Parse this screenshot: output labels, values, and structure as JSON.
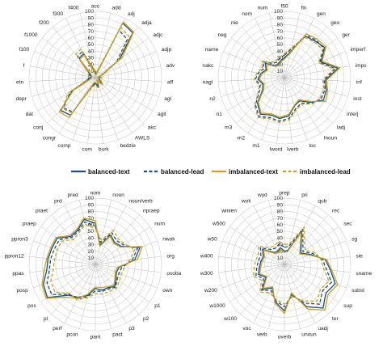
{
  "colors": {
    "balanced": "#1f4e79",
    "imbalanced": "#c9a227",
    "grid": "#cfcfcf",
    "spoke": "#bdbdbd"
  },
  "legend": [
    {
      "label": "balanced-text",
      "color": "#1f4e79",
      "dash": "solid"
    },
    {
      "label": "balanced-lead",
      "color": "#1f4e79",
      "dash": "dashed"
    },
    {
      "label": "imbalanced-text",
      "color": "#c9a227",
      "dash": "solid"
    },
    {
      "label": "imbalanced-lead",
      "color": "#c9a227",
      "dash": "dashed"
    }
  ],
  "chart_data": [
    {
      "type": "radar",
      "rlim": [
        0,
        100
      ],
      "ticks": [
        "10",
        "20",
        "30",
        "40",
        "50",
        "60",
        "70",
        "80",
        "90",
        "100"
      ],
      "categories": [
        "acc",
        "add",
        "adj",
        "adja",
        "adjc",
        "adjp",
        "adv",
        "aff",
        "agl",
        "aglt",
        "akc",
        "AWLS",
        "bedzie",
        "burk",
        "com",
        "comp",
        "congr",
        "conj",
        "dat",
        "depr",
        "etn",
        "f",
        "f100",
        "f1000",
        "f200",
        "f300",
        "f400"
      ],
      "series": [
        {
          "name": "balanced-text",
          "values": [
            6,
            5,
            92,
            88,
            45,
            12,
            4,
            6,
            5,
            6,
            12,
            5,
            12,
            10,
            8,
            12,
            68,
            72,
            40,
            10,
            8,
            6,
            8,
            10,
            38,
            40,
            12
          ]
        },
        {
          "name": "balanced-lead",
          "values": [
            8,
            6,
            80,
            75,
            40,
            10,
            5,
            8,
            6,
            8,
            14,
            6,
            14,
            12,
            10,
            14,
            62,
            66,
            44,
            12,
            10,
            8,
            10,
            12,
            42,
            44,
            14
          ]
        },
        {
          "name": "imbalanced-text",
          "values": [
            5,
            5,
            94,
            90,
            50,
            10,
            4,
            5,
            5,
            5,
            10,
            4,
            10,
            8,
            7,
            10,
            72,
            75,
            38,
            8,
            6,
            5,
            6,
            8,
            36,
            38,
            10
          ]
        },
        {
          "name": "imbalanced-lead",
          "values": [
            10,
            8,
            85,
            80,
            42,
            14,
            8,
            10,
            8,
            10,
            16,
            8,
            16,
            14,
            12,
            16,
            64,
            68,
            48,
            14,
            12,
            10,
            12,
            14,
            46,
            48,
            16
          ]
        }
      ]
    },
    {
      "type": "radar",
      "rlim": [
        0,
        100
      ],
      "ticks": [
        "10",
        "20",
        "30",
        "40",
        "50",
        "60",
        "70",
        "80",
        "90",
        "100"
      ],
      "categories": [
        "f50",
        "fin",
        "gen",
        "geo",
        "ger",
        "imperf",
        "imps",
        "inf",
        "inst",
        "interj",
        "ladj",
        "lnoun",
        "loc",
        "lverb",
        "lword",
        "m1",
        "m2",
        "m3",
        "n1",
        "n2",
        "nagl",
        "nakc",
        "name",
        "neg",
        "nie",
        "nom",
        "num"
      ],
      "series": [
        {
          "name": "balanced-text",
          "values": [
            30,
            40,
            70,
            72,
            76,
            60,
            82,
            62,
            66,
            68,
            54,
            42,
            45,
            58,
            62,
            60,
            66,
            56,
            38,
            34,
            40,
            36,
            30,
            36,
            24,
            22,
            26
          ]
        },
        {
          "name": "balanced-lead",
          "values": [
            34,
            44,
            72,
            74,
            74,
            58,
            78,
            60,
            64,
            64,
            56,
            46,
            50,
            62,
            66,
            64,
            70,
            60,
            44,
            38,
            44,
            40,
            34,
            40,
            28,
            26,
            30
          ]
        },
        {
          "name": "imbalanced-text",
          "values": [
            28,
            38,
            74,
            76,
            78,
            62,
            85,
            64,
            68,
            72,
            52,
            40,
            44,
            56,
            60,
            58,
            64,
            54,
            36,
            32,
            38,
            34,
            28,
            34,
            22,
            20,
            24
          ]
        },
        {
          "name": "imbalanced-lead",
          "values": [
            36,
            46,
            68,
            70,
            72,
            56,
            76,
            58,
            62,
            62,
            58,
            48,
            52,
            64,
            68,
            66,
            72,
            62,
            46,
            40,
            46,
            42,
            36,
            42,
            30,
            28,
            32
          ]
        }
      ]
    },
    {
      "type": "radar",
      "rlim": [
        0,
        100
      ],
      "ticks": [
        "10",
        "20",
        "30",
        "40",
        "50",
        "60",
        "70",
        "80",
        "90",
        "100"
      ],
      "categories": [
        "nom",
        "noun",
        "noun/verb",
        "npraep",
        "num",
        "nwok",
        "org",
        "osoba",
        "own",
        "p1",
        "p2",
        "p3",
        "pact",
        "pant",
        "pcon",
        "perf",
        "pl",
        "pos",
        "posp",
        "ppas",
        "ppron12",
        "ppron3",
        "praep",
        "praet",
        "prd",
        "pred"
      ],
      "series": [
        {
          "name": "balanced-text",
          "values": [
            62,
            30,
            50,
            44,
            48,
            72,
            60,
            36,
            34,
            38,
            44,
            40,
            40,
            36,
            48,
            56,
            62,
            88,
            84,
            74,
            72,
            70,
            70,
            56,
            58,
            70
          ]
        },
        {
          "name": "balanced-lead",
          "values": [
            58,
            34,
            54,
            48,
            52,
            68,
            56,
            40,
            38,
            40,
            46,
            42,
            42,
            40,
            50,
            58,
            60,
            80,
            78,
            70,
            68,
            66,
            66,
            54,
            56,
            66
          ]
        },
        {
          "name": "imbalanced-text",
          "values": [
            66,
            28,
            48,
            42,
            46,
            76,
            64,
            34,
            32,
            36,
            42,
            38,
            36,
            34,
            46,
            58,
            66,
            90,
            86,
            78,
            74,
            72,
            72,
            58,
            60,
            72
          ]
        },
        {
          "name": "imbalanced-lead",
          "values": [
            54,
            38,
            58,
            52,
            54,
            64,
            52,
            44,
            42,
            44,
            48,
            46,
            46,
            44,
            52,
            60,
            58,
            74,
            72,
            64,
            62,
            62,
            62,
            50,
            54,
            62
          ]
        }
      ]
    },
    {
      "type": "radar",
      "rlim": [
        0,
        100
      ],
      "ticks": [
        "10",
        "20",
        "30",
        "40",
        "50",
        "60",
        "70",
        "80",
        "90",
        "100"
      ],
      "categories": [
        "prep",
        "pri",
        "qub",
        "rec",
        "sec",
        "sg",
        "sie",
        "sname",
        "subst",
        "sup",
        "ter",
        "uadj",
        "unoun",
        "uverb",
        "verb",
        "voc",
        "w100",
        "w1000",
        "w200",
        "w300",
        "w400",
        "w50",
        "w500",
        "winien",
        "wok",
        "wyd"
      ],
      "series": [
        {
          "name": "balanced-text",
          "values": [
            20,
            22,
            56,
            38,
            30,
            42,
            62,
            70,
            82,
            76,
            88,
            72,
            46,
            70,
            58,
            40,
            50,
            34,
            42,
            38,
            36,
            34,
            40,
            24,
            22,
            26
          ]
        },
        {
          "name": "balanced-lead",
          "values": [
            26,
            28,
            60,
            42,
            34,
            46,
            58,
            64,
            76,
            70,
            80,
            66,
            48,
            64,
            56,
            44,
            52,
            38,
            46,
            42,
            40,
            38,
            44,
            30,
            28,
            32
          ]
        },
        {
          "name": "imbalanced-text",
          "values": [
            18,
            20,
            54,
            36,
            28,
            40,
            64,
            72,
            86,
            80,
            92,
            76,
            44,
            74,
            60,
            38,
            48,
            32,
            40,
            36,
            34,
            32,
            38,
            22,
            20,
            24
          ]
        },
        {
          "name": "imbalanced-lead",
          "values": [
            30,
            32,
            64,
            46,
            38,
            50,
            56,
            60,
            72,
            66,
            74,
            62,
            50,
            60,
            54,
            48,
            56,
            42,
            50,
            46,
            44,
            42,
            48,
            34,
            32,
            36
          ]
        }
      ]
    }
  ]
}
